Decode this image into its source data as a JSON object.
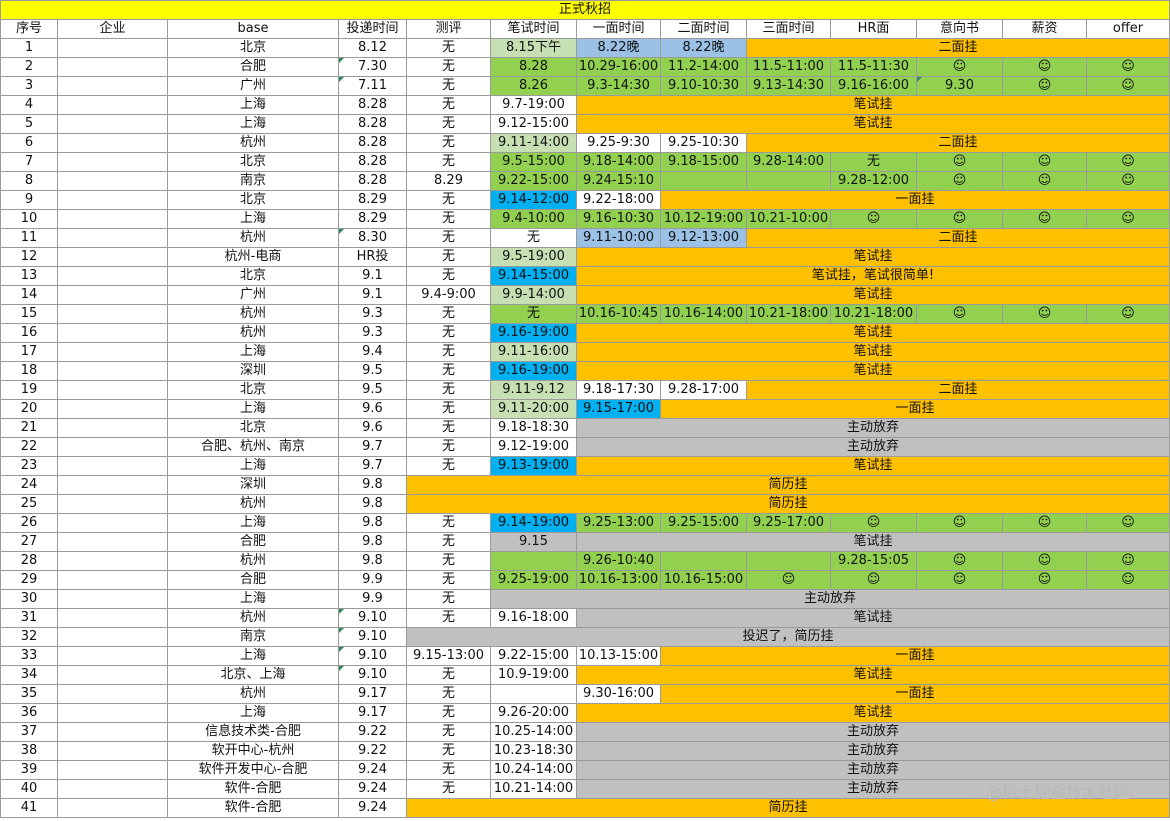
{
  "title": "正式秋招",
  "headers": [
    "序号",
    "企业",
    "base",
    "投递时间",
    "测评",
    "笔试时间",
    "一面时间",
    "二面时间",
    "三面时间",
    "HR面",
    "意向书",
    "薪资",
    "offer"
  ],
  "colors": {
    "title": "#ffff00",
    "orange": "#ffc000",
    "green": "#92d050",
    "light_green": "#c6e0b4",
    "light_blue": "#9bc2e6",
    "cyan": "#00b0f0",
    "gray": "#c0c0c0"
  },
  "rows": [
    {
      "cells": [
        {
          "t": "1"
        },
        {
          "t": ""
        },
        {
          "t": "北京"
        },
        {
          "t": "8.12"
        },
        {
          "t": "无"
        },
        {
          "t": "8.15下午",
          "c": "lg"
        },
        {
          "t": "8.22晚",
          "c": "b"
        },
        {
          "t": "8.22晚",
          "c": "b"
        },
        {
          "t": "二面挂",
          "s": 5,
          "c": "y"
        }
      ]
    },
    {
      "cells": [
        {
          "t": "2"
        },
        {
          "t": ""
        },
        {
          "t": "合肥"
        },
        {
          "t": "7.30",
          "f": true
        },
        {
          "t": "无"
        },
        {
          "t": "8.28",
          "c": "g"
        },
        {
          "t": "10.29-16:00",
          "c": "g"
        },
        {
          "t": "11.2-14:00",
          "c": "g"
        },
        {
          "t": "11.5-11:00",
          "c": "g"
        },
        {
          "t": "11.5-11:30",
          "c": "g"
        },
        {
          "t": "☺",
          "c": "g"
        },
        {
          "t": "☺",
          "c": "g"
        },
        {
          "t": "☺",
          "c": "g"
        }
      ]
    },
    {
      "cells": [
        {
          "t": "3"
        },
        {
          "t": ""
        },
        {
          "t": "广州"
        },
        {
          "t": "7.11",
          "f": true
        },
        {
          "t": "无"
        },
        {
          "t": "8.26",
          "c": "g"
        },
        {
          "t": "9.3-14:30",
          "c": "g"
        },
        {
          "t": "9.10-10:30",
          "c": "g"
        },
        {
          "t": "9.13-14:30",
          "c": "g"
        },
        {
          "t": "9.16-16:00",
          "c": "g"
        },
        {
          "t": "9.30",
          "c": "g",
          "f": true
        },
        {
          "t": "☺",
          "c": "g"
        },
        {
          "t": "☺",
          "c": "g"
        }
      ]
    },
    {
      "cells": [
        {
          "t": "4"
        },
        {
          "t": ""
        },
        {
          "t": "上海"
        },
        {
          "t": "8.28"
        },
        {
          "t": "无"
        },
        {
          "t": "9.7-19:00"
        },
        {
          "t": "笔试挂",
          "s": 7,
          "c": "y"
        }
      ]
    },
    {
      "cells": [
        {
          "t": "5"
        },
        {
          "t": ""
        },
        {
          "t": "上海"
        },
        {
          "t": "8.28"
        },
        {
          "t": "无"
        },
        {
          "t": "9.12-15:00"
        },
        {
          "t": "笔试挂",
          "s": 7,
          "c": "y"
        }
      ]
    },
    {
      "cells": [
        {
          "t": "6"
        },
        {
          "t": ""
        },
        {
          "t": "杭州"
        },
        {
          "t": "8.28"
        },
        {
          "t": "无"
        },
        {
          "t": "9.11-14:00",
          "c": "lg"
        },
        {
          "t": "9.25-9:30"
        },
        {
          "t": "9.25-10:30"
        },
        {
          "t": "二面挂",
          "s": 5,
          "c": "y"
        }
      ]
    },
    {
      "cells": [
        {
          "t": "7"
        },
        {
          "t": ""
        },
        {
          "t": "北京"
        },
        {
          "t": "8.28"
        },
        {
          "t": "无"
        },
        {
          "t": "9.5-15:00",
          "c": "g"
        },
        {
          "t": "9.18-14:00",
          "c": "g"
        },
        {
          "t": "9.18-15:00",
          "c": "g"
        },
        {
          "t": "9.28-14:00",
          "c": "g"
        },
        {
          "t": "无",
          "c": "g"
        },
        {
          "t": "☺",
          "c": "g"
        },
        {
          "t": "☺",
          "c": "g"
        },
        {
          "t": "☺",
          "c": "g"
        }
      ]
    },
    {
      "cells": [
        {
          "t": "8"
        },
        {
          "t": ""
        },
        {
          "t": "南京"
        },
        {
          "t": "8.28"
        },
        {
          "t": "8.29"
        },
        {
          "t": "9.22-15:00",
          "c": "g"
        },
        {
          "t": "9.24-15:10",
          "c": "g"
        },
        {
          "t": "",
          "c": "g"
        },
        {
          "t": "",
          "c": "g"
        },
        {
          "t": "9.28-12:00",
          "c": "g"
        },
        {
          "t": "☺",
          "c": "g"
        },
        {
          "t": "☺",
          "c": "g"
        },
        {
          "t": "☺",
          "c": "g"
        }
      ]
    },
    {
      "cells": [
        {
          "t": "9"
        },
        {
          "t": ""
        },
        {
          "t": "北京"
        },
        {
          "t": "8.29"
        },
        {
          "t": "无"
        },
        {
          "t": "9.14-12:00",
          "c": "c"
        },
        {
          "t": "9.22-18:00"
        },
        {
          "t": "一面挂",
          "s": 6,
          "c": "y"
        }
      ]
    },
    {
      "cells": [
        {
          "t": "10"
        },
        {
          "t": ""
        },
        {
          "t": "上海"
        },
        {
          "t": "8.29"
        },
        {
          "t": "无"
        },
        {
          "t": "9.4-10:00",
          "c": "g"
        },
        {
          "t": "9.16-10:30",
          "c": "g"
        },
        {
          "t": "10.12-19:00",
          "c": "g"
        },
        {
          "t": "10.21-10:00",
          "c": "g"
        },
        {
          "t": "☺",
          "c": "g"
        },
        {
          "t": "☺",
          "c": "g"
        },
        {
          "t": "☺",
          "c": "g"
        },
        {
          "t": "☺",
          "c": "g"
        }
      ]
    },
    {
      "cells": [
        {
          "t": "11"
        },
        {
          "t": ""
        },
        {
          "t": "杭州"
        },
        {
          "t": "8.30",
          "f": true
        },
        {
          "t": "无"
        },
        {
          "t": "无"
        },
        {
          "t": "9.11-10:00",
          "c": "b"
        },
        {
          "t": "9.12-13:00",
          "c": "b"
        },
        {
          "t": "二面挂",
          "s": 5,
          "c": "y"
        }
      ]
    },
    {
      "cells": [
        {
          "t": "12"
        },
        {
          "t": ""
        },
        {
          "t": "杭州-电商"
        },
        {
          "t": "HR投"
        },
        {
          "t": "无"
        },
        {
          "t": "9.5-19:00",
          "c": "lg"
        },
        {
          "t": "笔试挂",
          "s": 7,
          "c": "y"
        }
      ]
    },
    {
      "cells": [
        {
          "t": "13"
        },
        {
          "t": ""
        },
        {
          "t": "北京"
        },
        {
          "t": "9.1"
        },
        {
          "t": "无"
        },
        {
          "t": "9.14-15:00",
          "c": "c"
        },
        {
          "t": "笔试挂，笔试很简单!",
          "s": 7,
          "c": "y"
        }
      ]
    },
    {
      "cells": [
        {
          "t": "14"
        },
        {
          "t": ""
        },
        {
          "t": "广州"
        },
        {
          "t": "9.1"
        },
        {
          "t": "9.4-9:00"
        },
        {
          "t": "9.9-14:00",
          "c": "lg"
        },
        {
          "t": "笔试挂",
          "s": 7,
          "c": "y"
        }
      ]
    },
    {
      "cells": [
        {
          "t": "15"
        },
        {
          "t": ""
        },
        {
          "t": "杭州"
        },
        {
          "t": "9.3"
        },
        {
          "t": "无"
        },
        {
          "t": "无",
          "c": "g"
        },
        {
          "t": "10.16-10:45",
          "c": "g"
        },
        {
          "t": "10.16-14:00",
          "c": "g"
        },
        {
          "t": "10.21-18:00",
          "c": "g"
        },
        {
          "t": "10.21-18:00",
          "c": "g"
        },
        {
          "t": "☺",
          "c": "g"
        },
        {
          "t": "☺",
          "c": "g"
        },
        {
          "t": "☺",
          "c": "g"
        }
      ]
    },
    {
      "cells": [
        {
          "t": "16"
        },
        {
          "t": ""
        },
        {
          "t": "杭州"
        },
        {
          "t": "9.3"
        },
        {
          "t": "无"
        },
        {
          "t": "9.16-19:00",
          "c": "c"
        },
        {
          "t": "笔试挂",
          "s": 7,
          "c": "y"
        }
      ]
    },
    {
      "cells": [
        {
          "t": "17"
        },
        {
          "t": ""
        },
        {
          "t": "上海"
        },
        {
          "t": "9.4"
        },
        {
          "t": "无"
        },
        {
          "t": "9.11-16:00",
          "c": "lg"
        },
        {
          "t": "笔试挂",
          "s": 7,
          "c": "y"
        }
      ]
    },
    {
      "cells": [
        {
          "t": "18"
        },
        {
          "t": ""
        },
        {
          "t": "深圳"
        },
        {
          "t": "9.5"
        },
        {
          "t": "无"
        },
        {
          "t": "9.16-19:00",
          "c": "c"
        },
        {
          "t": "笔试挂",
          "s": 7,
          "c": "y"
        }
      ]
    },
    {
      "cells": [
        {
          "t": "19"
        },
        {
          "t": ""
        },
        {
          "t": "北京"
        },
        {
          "t": "9.5"
        },
        {
          "t": "无"
        },
        {
          "t": "9.11-9.12",
          "c": "lg"
        },
        {
          "t": "9.18-17:30"
        },
        {
          "t": "9.28-17:00"
        },
        {
          "t": "二面挂",
          "s": 5,
          "c": "y"
        }
      ]
    },
    {
      "cells": [
        {
          "t": "20"
        },
        {
          "t": ""
        },
        {
          "t": "上海"
        },
        {
          "t": "9.6"
        },
        {
          "t": "无"
        },
        {
          "t": "9.11-20:00",
          "c": "lg"
        },
        {
          "t": "9.15-17:00",
          "c": "c"
        },
        {
          "t": "一面挂",
          "s": 6,
          "c": "y"
        }
      ]
    },
    {
      "cells": [
        {
          "t": "21"
        },
        {
          "t": ""
        },
        {
          "t": "北京"
        },
        {
          "t": "9.6"
        },
        {
          "t": "无"
        },
        {
          "t": "9.18-18:30"
        },
        {
          "t": "主动放弃",
          "s": 7,
          "c": "gr"
        }
      ]
    },
    {
      "cells": [
        {
          "t": "22"
        },
        {
          "t": ""
        },
        {
          "t": "合肥、杭州、南京"
        },
        {
          "t": "9.7"
        },
        {
          "t": "无"
        },
        {
          "t": "9.12-19:00"
        },
        {
          "t": "主动放弃",
          "s": 7,
          "c": "gr"
        }
      ]
    },
    {
      "cells": [
        {
          "t": "23"
        },
        {
          "t": ""
        },
        {
          "t": "上海"
        },
        {
          "t": "9.7"
        },
        {
          "t": "无"
        },
        {
          "t": "9.13-19:00",
          "c": "c"
        },
        {
          "t": "笔试挂",
          "s": 7,
          "c": "y"
        }
      ]
    },
    {
      "cells": [
        {
          "t": "24"
        },
        {
          "t": ""
        },
        {
          "t": "深圳"
        },
        {
          "t": "9.8"
        },
        {
          "t": "简历挂",
          "s": 9,
          "c": "y"
        }
      ]
    },
    {
      "cells": [
        {
          "t": "25"
        },
        {
          "t": ""
        },
        {
          "t": "杭州"
        },
        {
          "t": "9.8"
        },
        {
          "t": "简历挂",
          "s": 9,
          "c": "y"
        }
      ]
    },
    {
      "cells": [
        {
          "t": "26"
        },
        {
          "t": ""
        },
        {
          "t": "上海"
        },
        {
          "t": "9.8"
        },
        {
          "t": "无"
        },
        {
          "t": "9.14-19:00",
          "c": "c"
        },
        {
          "t": "9.25-13:00",
          "c": "g"
        },
        {
          "t": "9.25-15:00",
          "c": "g"
        },
        {
          "t": "9.25-17:00",
          "c": "g"
        },
        {
          "t": "☺",
          "c": "g"
        },
        {
          "t": "☺",
          "c": "g"
        },
        {
          "t": "☺",
          "c": "g"
        },
        {
          "t": "☺",
          "c": "g"
        }
      ]
    },
    {
      "cells": [
        {
          "t": "27"
        },
        {
          "t": ""
        },
        {
          "t": "合肥"
        },
        {
          "t": "9.8"
        },
        {
          "t": "无"
        },
        {
          "t": "9.15",
          "c": "gr"
        },
        {
          "t": "笔试挂",
          "s": 7,
          "c": "gr"
        }
      ]
    },
    {
      "cells": [
        {
          "t": "28"
        },
        {
          "t": ""
        },
        {
          "t": "杭州"
        },
        {
          "t": "9.8"
        },
        {
          "t": "无"
        },
        {
          "t": "",
          "c": "g"
        },
        {
          "t": "9.26-10:40",
          "c": "g"
        },
        {
          "t": "",
          "c": "g"
        },
        {
          "t": "",
          "c": "g"
        },
        {
          "t": "9.28-15:05",
          "c": "g"
        },
        {
          "t": "☺",
          "c": "g"
        },
        {
          "t": "☺",
          "c": "g"
        },
        {
          "t": "☺",
          "c": "g"
        }
      ]
    },
    {
      "cells": [
        {
          "t": "29"
        },
        {
          "t": ""
        },
        {
          "t": "合肥"
        },
        {
          "t": "9.9"
        },
        {
          "t": "无"
        },
        {
          "t": "9.25-19:00",
          "c": "g"
        },
        {
          "t": "10.16-13:00",
          "c": "g"
        },
        {
          "t": "10.16-15:00",
          "c": "g"
        },
        {
          "t": "☺",
          "c": "g"
        },
        {
          "t": "☺",
          "c": "g"
        },
        {
          "t": "☺",
          "c": "g"
        },
        {
          "t": "☺",
          "c": "g"
        },
        {
          "t": "☺",
          "c": "g"
        }
      ]
    },
    {
      "cells": [
        {
          "t": "30"
        },
        {
          "t": ""
        },
        {
          "t": "上海"
        },
        {
          "t": "9.9"
        },
        {
          "t": "无"
        },
        {
          "t": "主动放弃",
          "s": 8,
          "c": "gr"
        }
      ]
    },
    {
      "cells": [
        {
          "t": "31"
        },
        {
          "t": ""
        },
        {
          "t": "杭州"
        },
        {
          "t": "9.10",
          "f": true
        },
        {
          "t": "无"
        },
        {
          "t": "9.16-18:00"
        },
        {
          "t": "笔试挂",
          "s": 7,
          "c": "gr"
        }
      ]
    },
    {
      "cells": [
        {
          "t": "32"
        },
        {
          "t": ""
        },
        {
          "t": "南京"
        },
        {
          "t": "9.10",
          "f": true
        },
        {
          "t": "投迟了，简历挂",
          "s": 9,
          "c": "gr"
        }
      ]
    },
    {
      "cells": [
        {
          "t": "33"
        },
        {
          "t": ""
        },
        {
          "t": "上海"
        },
        {
          "t": "9.10",
          "f": true
        },
        {
          "t": "9.15-13:00"
        },
        {
          "t": "9.22-15:00"
        },
        {
          "t": "10.13-15:00"
        },
        {
          "t": "一面挂",
          "s": 6,
          "c": "y"
        }
      ]
    },
    {
      "cells": [
        {
          "t": "34"
        },
        {
          "t": ""
        },
        {
          "t": "北京、上海"
        },
        {
          "t": "9.10",
          "f": true
        },
        {
          "t": "无"
        },
        {
          "t": "10.9-19:00"
        },
        {
          "t": "笔试挂",
          "s": 7,
          "c": "y"
        }
      ]
    },
    {
      "cells": [
        {
          "t": "35"
        },
        {
          "t": ""
        },
        {
          "t": "杭州"
        },
        {
          "t": "9.17"
        },
        {
          "t": "无"
        },
        {
          "t": ""
        },
        {
          "t": "9.30-16:00"
        },
        {
          "t": "一面挂",
          "s": 6,
          "c": "y"
        }
      ]
    },
    {
      "cells": [
        {
          "t": "36"
        },
        {
          "t": ""
        },
        {
          "t": "上海"
        },
        {
          "t": "9.17"
        },
        {
          "t": "无"
        },
        {
          "t": "9.26-20:00"
        },
        {
          "t": "笔试挂",
          "s": 7,
          "c": "y"
        }
      ]
    },
    {
      "cells": [
        {
          "t": "37"
        },
        {
          "t": ""
        },
        {
          "t": "信息技术类-合肥"
        },
        {
          "t": "9.22"
        },
        {
          "t": "无"
        },
        {
          "t": "10.25-14:00"
        },
        {
          "t": "主动放弃",
          "s": 7,
          "c": "gr"
        }
      ]
    },
    {
      "cells": [
        {
          "t": "38"
        },
        {
          "t": ""
        },
        {
          "t": "软开中心-杭州"
        },
        {
          "t": "9.22"
        },
        {
          "t": "无"
        },
        {
          "t": "10.23-18:30"
        },
        {
          "t": "主动放弃",
          "s": 7,
          "c": "gr"
        }
      ]
    },
    {
      "cells": [
        {
          "t": "39"
        },
        {
          "t": ""
        },
        {
          "t": "软件开发中心-合肥"
        },
        {
          "t": "9.24"
        },
        {
          "t": "无"
        },
        {
          "t": "10.24-14:00"
        },
        {
          "t": "主动放弃",
          "s": 7,
          "c": "gr"
        }
      ]
    },
    {
      "cells": [
        {
          "t": "40"
        },
        {
          "t": ""
        },
        {
          "t": "软件-合肥"
        },
        {
          "t": "9.24"
        },
        {
          "t": "无"
        },
        {
          "t": "10.21-14:00"
        },
        {
          "t": "主动放弃",
          "s": 7,
          "c": "gr"
        }
      ]
    },
    {
      "cells": [
        {
          "t": "41"
        },
        {
          "t": ""
        },
        {
          "t": "软件-合肥"
        },
        {
          "t": "9.24"
        },
        {
          "t": "简历挂",
          "s": 9,
          "c": "y"
        }
      ]
    }
  ],
  "watermark": "@稀土掘金技术社区"
}
